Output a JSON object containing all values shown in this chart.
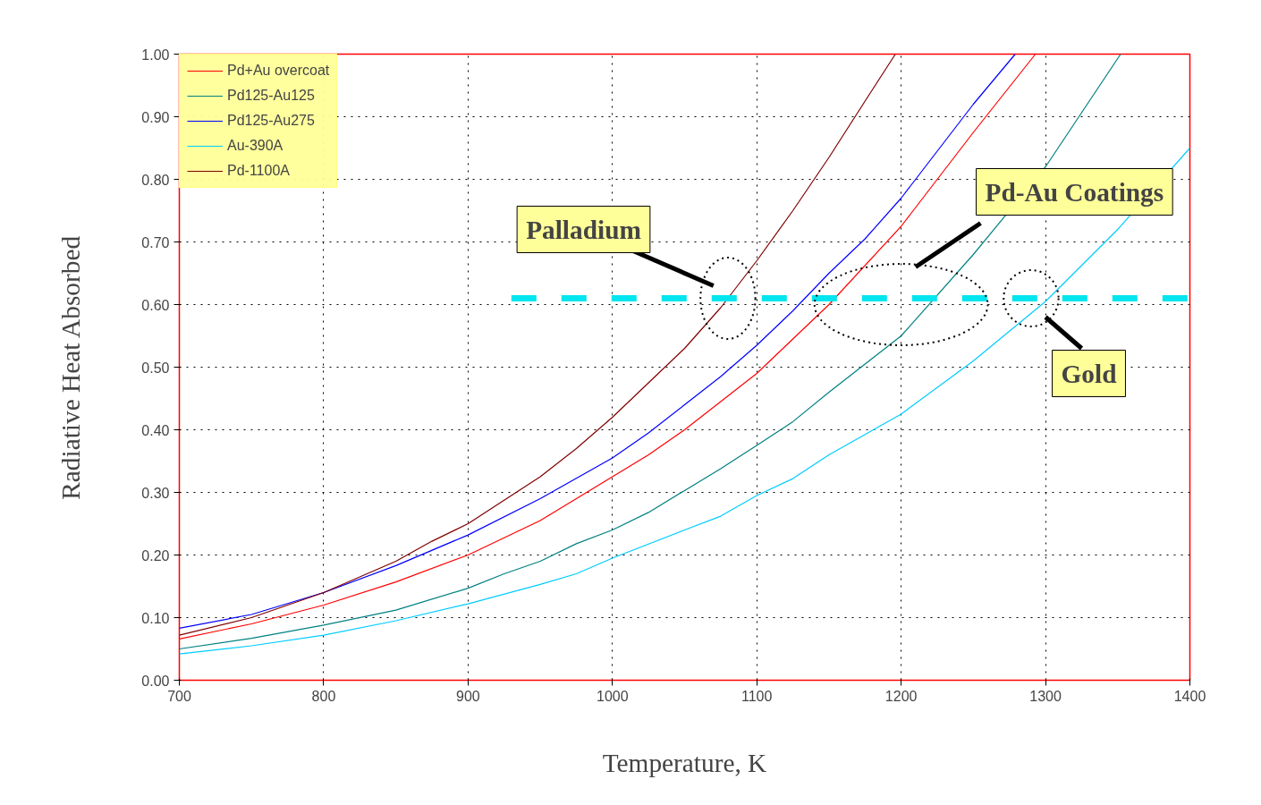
{
  "chart_data": {
    "type": "line",
    "xlabel": "Temperature, K",
    "ylabel": "Radiative Heat Absorbed",
    "xlim": [
      700,
      1400
    ],
    "ylim": [
      0,
      1
    ],
    "xticks": [
      700,
      800,
      900,
      1000,
      1100,
      1200,
      1300,
      1400
    ],
    "yticks": [
      {
        "value": 0,
        "label": "0.00"
      },
      {
        "value": 0.1,
        "label": "0.10"
      },
      {
        "value": 0.2,
        "label": "0.20"
      },
      {
        "value": 0.3,
        "label": "0.30"
      },
      {
        "value": 0.4,
        "label": "0.40"
      },
      {
        "value": 0.5,
        "label": "0.50"
      },
      {
        "value": 0.6,
        "label": "0.60"
      },
      {
        "value": 0.7,
        "label": "0.70"
      },
      {
        "value": 0.8,
        "label": "0.80"
      },
      {
        "value": 0.9,
        "label": "0.90"
      },
      {
        "value": 1,
        "label": "1.00"
      }
    ],
    "grid": true,
    "legend": "top left",
    "line_style": "solid",
    "series": [
      {
        "name": "Pd+Au overcoat",
        "color": "#ff0000",
        "x": [
          700,
          750,
          800,
          850,
          900,
          950,
          1000,
          1025,
          1050,
          1100,
          1150,
          1200,
          1250,
          1293
        ],
        "values": [
          0.066,
          0.09,
          0.12,
          0.157,
          0.2,
          0.255,
          0.325,
          0.36,
          0.4,
          0.49,
          0.6,
          0.725,
          0.875,
          1.0
        ]
      },
      {
        "name": "Pd125-Au125",
        "color": "#008080",
        "x": [
          700,
          750,
          800,
          850,
          900,
          925,
          950,
          975,
          1000,
          1025,
          1050,
          1075,
          1100,
          1125,
          1150,
          1200,
          1250,
          1300,
          1352
        ],
        "values": [
          0.05,
          0.067,
          0.088,
          0.112,
          0.147,
          0.17,
          0.19,
          0.218,
          0.24,
          0.268,
          0.303,
          0.338,
          0.375,
          0.413,
          0.46,
          0.55,
          0.68,
          0.82,
          1.0
        ]
      },
      {
        "name": "Pd125-Au275",
        "color": "#0000ff",
        "x": [
          700,
          750,
          800,
          850,
          900,
          950,
          1000,
          1025,
          1050,
          1075,
          1100,
          1125,
          1150,
          1175,
          1200,
          1250,
          1279
        ],
        "values": [
          0.083,
          0.105,
          0.14,
          0.183,
          0.232,
          0.29,
          0.355,
          0.395,
          0.44,
          0.485,
          0.535,
          0.59,
          0.65,
          0.705,
          0.77,
          0.92,
          1.0
        ]
      },
      {
        "name": "Au-390A",
        "color": "#00ccff",
        "x": [
          700,
          750,
          800,
          850,
          900,
          950,
          975,
          1000,
          1050,
          1075,
          1100,
          1125,
          1150,
          1200,
          1250,
          1300,
          1350,
          1400
        ],
        "values": [
          0.042,
          0.055,
          0.072,
          0.095,
          0.122,
          0.153,
          0.17,
          0.195,
          0.24,
          0.262,
          0.295,
          0.322,
          0.36,
          0.425,
          0.51,
          0.605,
          0.72,
          0.85
        ]
      },
      {
        "name": "Pd-1100A",
        "color": "#800000",
        "x": [
          700,
          750,
          800,
          850,
          875,
          900,
          950,
          975,
          1000,
          1025,
          1050,
          1075,
          1100,
          1125,
          1150,
          1175,
          1196
        ],
        "values": [
          0.072,
          0.1,
          0.14,
          0.19,
          0.222,
          0.25,
          0.325,
          0.37,
          0.42,
          0.475,
          0.53,
          0.595,
          0.67,
          0.75,
          0.835,
          0.925,
          1.0
        ]
      },
      {
        "type": "line",
        "color": "#00e5ee",
        "line_style": "dashed",
        "x": [
          930,
          1400
        ],
        "values": [
          0.61,
          0.61
        ]
      }
    ],
    "annotations": [
      "Palladium",
      "Pd-Au Coatings",
      "Gold"
    ]
  }
}
